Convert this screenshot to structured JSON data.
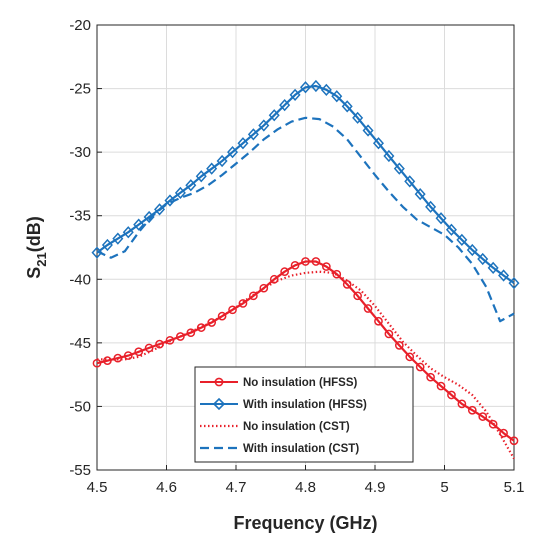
{
  "chart_data": {
    "type": "line",
    "xlabel": "Frequency (GHz)",
    "ylabel": {
      "main": "S",
      "sub": "21",
      "suffix": "(dB)"
    },
    "xlim": [
      4.5,
      5.1
    ],
    "ylim": [
      -55,
      -20
    ],
    "xticks": [
      4.5,
      4.6,
      4.7,
      4.8,
      4.9,
      5.0,
      5.1
    ],
    "xtick_labels": [
      "4.5",
      "4.6",
      "4.7",
      "4.8",
      "4.9",
      "5",
      "5.1"
    ],
    "yticks": [
      -55,
      -50,
      -45,
      -40,
      -35,
      -30,
      -25,
      -20
    ],
    "ytick_labels": [
      "-55",
      "-50",
      "-45",
      "-40",
      "-35",
      "-30",
      "-25",
      "-20"
    ],
    "grid": true,
    "legend_position": "bottom-center",
    "series": [
      {
        "name": "No insulation (HFSS)",
        "color": "#e8202a",
        "style": "solid",
        "marker": "circle",
        "x": [
          4.5,
          4.515,
          4.53,
          4.545,
          4.56,
          4.575,
          4.59,
          4.605,
          4.62,
          4.635,
          4.65,
          4.665,
          4.68,
          4.695,
          4.71,
          4.725,
          4.74,
          4.755,
          4.77,
          4.785,
          4.8,
          4.815,
          4.83,
          4.845,
          4.86,
          4.875,
          4.89,
          4.905,
          4.92,
          4.935,
          4.95,
          4.965,
          4.98,
          4.995,
          5.01,
          5.025,
          5.04,
          5.055,
          5.07,
          5.085,
          5.1
        ],
        "y": [
          -46.6,
          -46.4,
          -46.2,
          -46.0,
          -45.7,
          -45.4,
          -45.1,
          -44.8,
          -44.5,
          -44.2,
          -43.8,
          -43.4,
          -42.9,
          -42.4,
          -41.9,
          -41.3,
          -40.7,
          -40.0,
          -39.4,
          -38.9,
          -38.6,
          -38.6,
          -39.0,
          -39.6,
          -40.4,
          -41.3,
          -42.3,
          -43.3,
          -44.3,
          -45.2,
          -46.1,
          -46.9,
          -47.7,
          -48.4,
          -49.1,
          -49.8,
          -50.3,
          -50.8,
          -51.4,
          -52.1,
          -52.7
        ]
      },
      {
        "name": "With insulation (HFSS)",
        "color": "#1d73bd",
        "style": "solid",
        "marker": "diamond",
        "x": [
          4.5,
          4.515,
          4.53,
          4.545,
          4.56,
          4.575,
          4.59,
          4.605,
          4.62,
          4.635,
          4.65,
          4.665,
          4.68,
          4.695,
          4.71,
          4.725,
          4.74,
          4.755,
          4.77,
          4.785,
          4.8,
          4.815,
          4.83,
          4.845,
          4.86,
          4.875,
          4.89,
          4.905,
          4.92,
          4.935,
          4.95,
          4.965,
          4.98,
          4.995,
          5.01,
          5.025,
          5.04,
          5.055,
          5.07,
          5.085,
          5.1
        ],
        "y": [
          -37.9,
          -37.3,
          -36.8,
          -36.3,
          -35.7,
          -35.1,
          -34.5,
          -33.8,
          -33.2,
          -32.6,
          -31.9,
          -31.3,
          -30.7,
          -30.0,
          -29.3,
          -28.6,
          -27.9,
          -27.1,
          -26.3,
          -25.5,
          -24.9,
          -24.8,
          -25.1,
          -25.6,
          -26.4,
          -27.3,
          -28.3,
          -29.3,
          -30.3,
          -31.3,
          -32.3,
          -33.3,
          -34.3,
          -35.2,
          -36.1,
          -36.9,
          -37.7,
          -38.4,
          -39.1,
          -39.7,
          -40.3
        ]
      },
      {
        "name": "No insulation (CST)",
        "color": "#e8202a",
        "style": "dotted",
        "marker": "none",
        "x": [
          4.5,
          4.52,
          4.54,
          4.56,
          4.58,
          4.6,
          4.62,
          4.64,
          4.66,
          4.68,
          4.7,
          4.72,
          4.74,
          4.76,
          4.78,
          4.8,
          4.82,
          4.84,
          4.86,
          4.88,
          4.9,
          4.92,
          4.94,
          4.96,
          4.98,
          5.0,
          5.02,
          5.04,
          5.06,
          5.08,
          5.1
        ],
        "y": [
          -46.3,
          -46.3,
          -46.3,
          -46.1,
          -45.6,
          -45.0,
          -44.5,
          -44.0,
          -43.5,
          -42.9,
          -42.2,
          -41.4,
          -40.7,
          -40.1,
          -39.7,
          -39.5,
          -39.4,
          -39.5,
          -40.1,
          -40.9,
          -42.1,
          -43.5,
          -44.9,
          -46.0,
          -47.0,
          -47.7,
          -48.3,
          -49.1,
          -50.4,
          -52.2,
          -54.1
        ]
      },
      {
        "name": "With insulation (CST)",
        "color": "#1d73bd",
        "style": "dashed",
        "marker": "none",
        "x": [
          4.5,
          4.52,
          4.54,
          4.56,
          4.58,
          4.6,
          4.62,
          4.64,
          4.66,
          4.68,
          4.7,
          4.72,
          4.74,
          4.76,
          4.78,
          4.8,
          4.82,
          4.84,
          4.86,
          4.88,
          4.9,
          4.92,
          4.94,
          4.96,
          4.98,
          5.0,
          5.02,
          5.04,
          5.06,
          5.08,
          5.1
        ],
        "y": [
          -37.8,
          -38.3,
          -37.8,
          -36.3,
          -35.0,
          -34.1,
          -33.6,
          -33.2,
          -32.6,
          -31.8,
          -30.9,
          -30.0,
          -29.0,
          -28.2,
          -27.6,
          -27.3,
          -27.4,
          -28.0,
          -29.0,
          -30.4,
          -31.8,
          -33.1,
          -34.3,
          -35.3,
          -35.9,
          -36.5,
          -37.5,
          -38.8,
          -40.6,
          -43.3,
          -42.7
        ]
      }
    ]
  }
}
